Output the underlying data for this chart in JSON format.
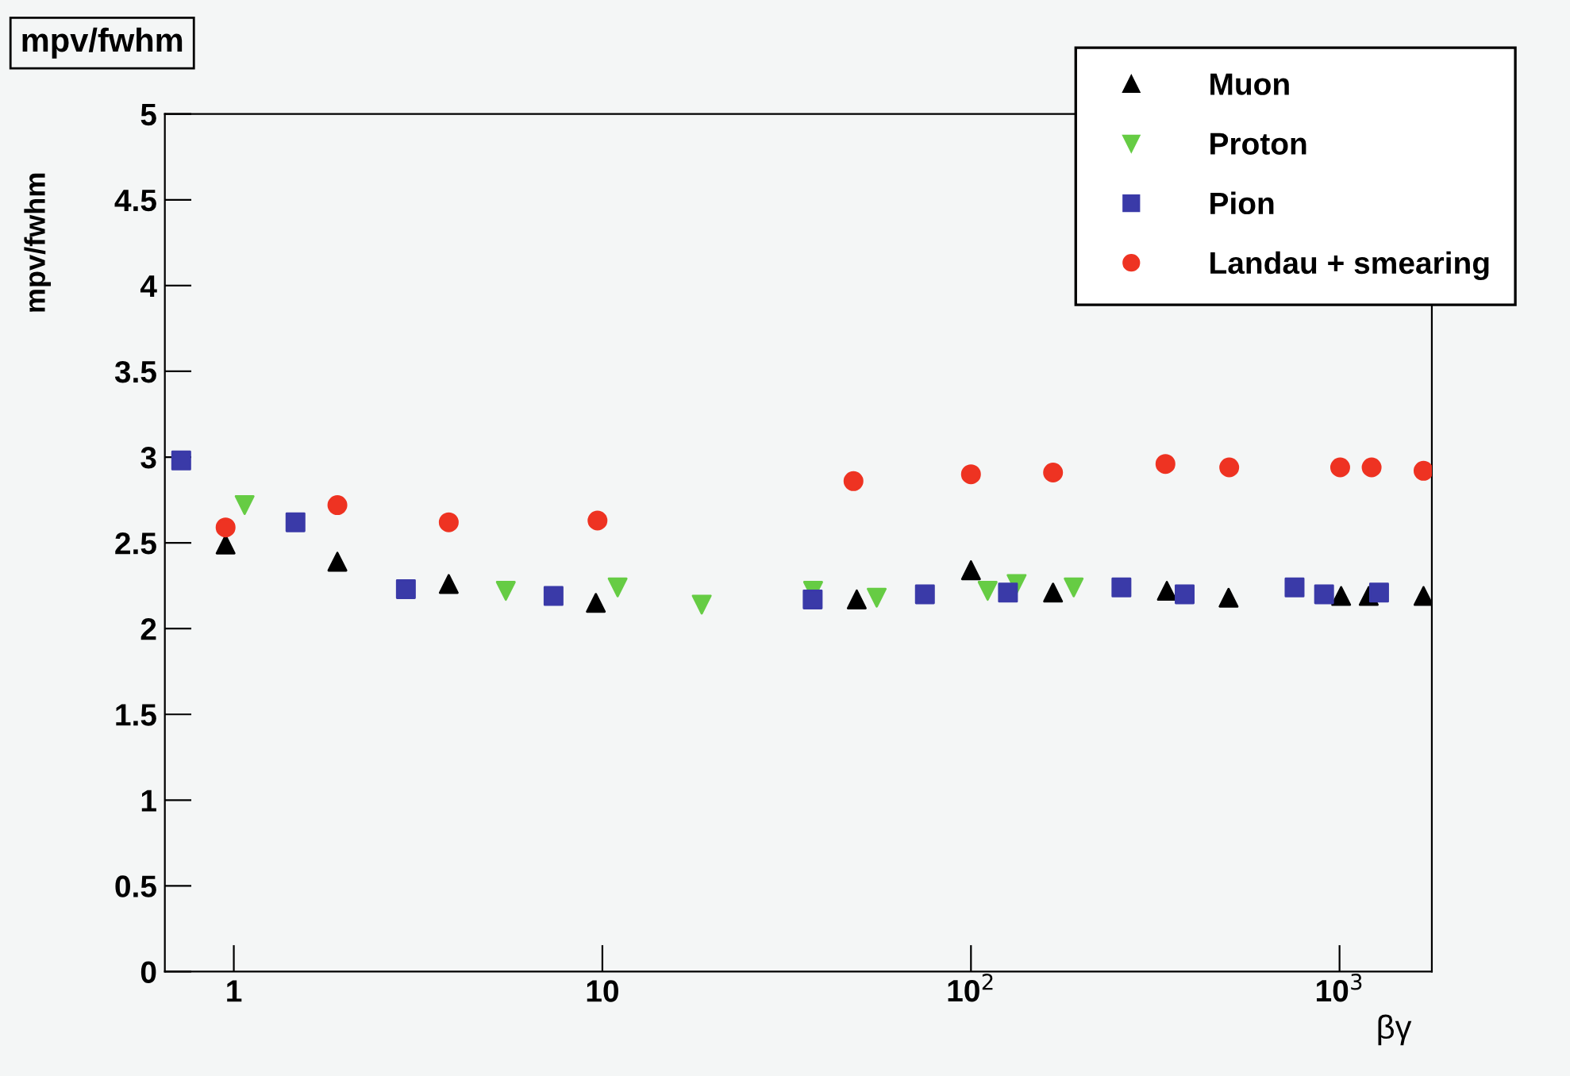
{
  "chart_data": {
    "type": "scatter",
    "title": "mpv/fwhm",
    "ylabel": "mpv/fwhm",
    "xlabel": "βγ",
    "log": "x",
    "xlim": [
      0.65,
      1780
    ],
    "ylim": [
      0,
      5
    ],
    "xticks": [
      1,
      10,
      {
        "value": 100,
        "label": "10$^{2}$"
      },
      {
        "value": 1000,
        "label": "10$^{3}$"
      }
    ],
    "yticks": [
      0,
      0.5,
      1,
      1.5,
      2,
      2.5,
      3,
      3.5,
      4,
      4.5,
      5
    ],
    "grid": false,
    "legend": "top right",
    "series": [
      {
        "name": "Muon",
        "color": "#000000",
        "marker": "triangle",
        "x": [
          0.95,
          1.91,
          3.83,
          9.6,
          49,
          100,
          167,
          340,
          500,
          1010,
          1200,
          1690
        ],
        "values": [
          2.49,
          2.39,
          2.26,
          2.15,
          2.17,
          2.34,
          2.21,
          2.22,
          2.18,
          2.19,
          2.19,
          2.19
        ]
      },
      {
        "name": "Proton",
        "color": "#66cc44",
        "marker": "triangle_down",
        "x": [
          1.07,
          5.47,
          11,
          18.6,
          37.3,
          55.5,
          111,
          133,
          190
        ],
        "values": [
          2.72,
          2.22,
          2.24,
          2.14,
          2.22,
          2.18,
          2.22,
          2.26,
          2.24
        ]
      },
      {
        "name": "Pion",
        "color": "#3a3aa8",
        "marker": "square",
        "x": [
          0.72,
          1.47,
          2.93,
          7.37,
          37.2,
          75,
          126,
          256,
          380,
          755,
          908,
          1280
        ],
        "values": [
          2.98,
          2.62,
          2.23,
          2.19,
          2.17,
          2.2,
          2.21,
          2.24,
          2.2,
          2.24,
          2.2,
          2.21
        ]
      },
      {
        "name": "Landau + smearing",
        "color": "#ee3322",
        "marker": "circle",
        "x": [
          0.95,
          1.91,
          3.83,
          9.7,
          48,
          100,
          167,
          337,
          502,
          1004,
          1222,
          1690
        ],
        "values": [
          2.59,
          2.72,
          2.62,
          2.63,
          2.86,
          2.9,
          2.91,
          2.96,
          2.94,
          2.94,
          2.94,
          2.92
        ]
      }
    ]
  }
}
